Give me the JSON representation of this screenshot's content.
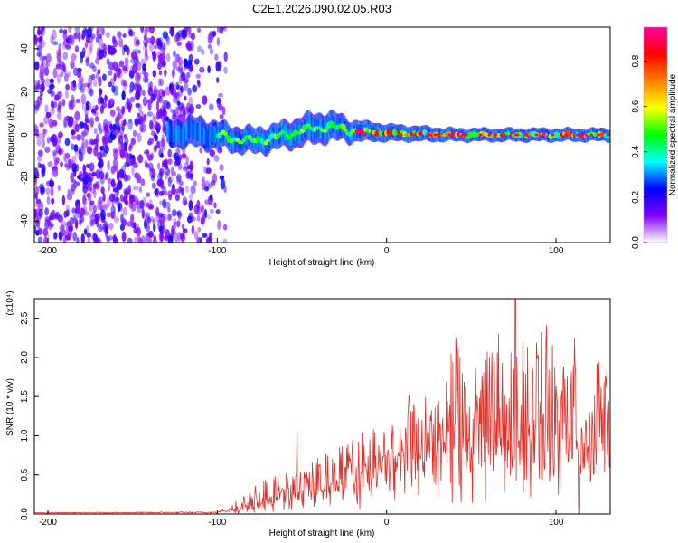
{
  "title": "C2E1.2026.090.02.05.R03",
  "chart_data": [
    {
      "type": "heatmap",
      "name": "spectrogram",
      "xlabel": "Height of straight line (km)",
      "ylabel": "Frequency (Hz)",
      "xlim": [
        -208,
        132
      ],
      "ylim": [
        -50,
        50
      ],
      "xticks": [
        -200,
        -100,
        0,
        100
      ],
      "yticks": [
        -40,
        -20,
        0,
        20,
        40
      ],
      "noise_region_x": [
        -208,
        -95
      ],
      "signal_start_x": -130,
      "signal_ridge": [
        {
          "x": -130,
          "freq": 1,
          "width": 6
        },
        {
          "x": -110,
          "freq": 1,
          "width": 7
        },
        {
          "x": -95,
          "freq": -1,
          "width": 6
        },
        {
          "x": -80,
          "freq": -3,
          "width": 6
        },
        {
          "x": -65,
          "freq": -1,
          "width": 6
        },
        {
          "x": -50,
          "freq": 2,
          "width": 7
        },
        {
          "x": -35,
          "freq": 4,
          "width": 7
        },
        {
          "x": -20,
          "freq": 2,
          "width": 5
        },
        {
          "x": 0,
          "freq": 1,
          "width": 4
        },
        {
          "x": 40,
          "freq": 0,
          "width": 3
        },
        {
          "x": 80,
          "freq": 0,
          "width": 3
        },
        {
          "x": 132,
          "freq": 0,
          "width": 3
        }
      ],
      "colorbar": {
        "label": "Normalized spectral amplitude",
        "range": [
          0.0,
          0.95
        ],
        "ticks": [
          0.0,
          0.2,
          0.4,
          0.6,
          0.8
        ],
        "colors": [
          "#ffffff",
          "#7f00ff",
          "#0000ff",
          "#00ffff",
          "#00ff00",
          "#ffff00",
          "#ff8000",
          "#ff0000",
          "#ff00a0"
        ]
      }
    },
    {
      "type": "line",
      "name": "snr",
      "xlabel": "Height of straight line (km)",
      "ylabel": "SNR (10 * v/v)",
      "y_multiplier": "(x10⁴)",
      "xlim": [
        -208,
        132
      ],
      "ylim": [
        0,
        2.75
      ],
      "xticks": [
        -200,
        -100,
        0,
        100
      ],
      "yticks": [
        0.0,
        0.5,
        1.0,
        1.5,
        2.0,
        2.5
      ],
      "color": "#e8302a",
      "envelope": [
        {
          "x": -208,
          "base": 0.01,
          "peak": 0.02
        },
        {
          "x": -100,
          "base": 0.01,
          "peak": 0.03
        },
        {
          "x": -90,
          "base": 0.05,
          "peak": 0.15
        },
        {
          "x": -70,
          "base": 0.15,
          "peak": 0.45
        },
        {
          "x": -55,
          "base": 0.25,
          "peak": 0.55
        },
        {
          "x": -35,
          "base": 0.35,
          "peak": 0.7
        },
        {
          "x": -15,
          "base": 0.5,
          "peak": 0.85
        },
        {
          "x": 0,
          "base": 0.65,
          "peak": 1.05
        },
        {
          "x": 20,
          "base": 0.85,
          "peak": 1.5
        },
        {
          "x": 40,
          "base": 0.95,
          "peak": 1.9
        },
        {
          "x": 75,
          "base": 0.95,
          "peak": 2.1
        },
        {
          "x": 132,
          "base": 0.9,
          "peak": 1.75
        }
      ],
      "spikes": [
        {
          "x": -53,
          "y": 1.05
        },
        {
          "x": 38,
          "y": 2.05
        },
        {
          "x": 66,
          "y": 2.3
        },
        {
          "x": 76,
          "y": 2.75
        },
        {
          "x": 94,
          "y": 2.2
        },
        {
          "x": 110,
          "y": 1.9
        }
      ]
    }
  ]
}
